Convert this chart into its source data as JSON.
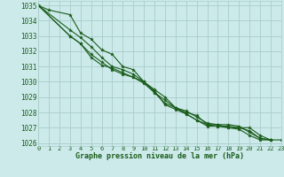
{
  "title": "Graphe pression niveau de la mer (hPa)",
  "background_color": "#cceaea",
  "grid_color": "#aacccc",
  "line_color": "#1a5c1a",
  "x_min": 0,
  "x_max": 23,
  "y_min": 1025.8,
  "y_max": 1035.3,
  "y_ticks": [
    1026,
    1027,
    1028,
    1029,
    1030,
    1031,
    1032,
    1033,
    1034,
    1035
  ],
  "series": [
    [
      1035.0,
      1034.7,
      null,
      1034.4,
      1033.2,
      1032.8,
      1032.1,
      1031.8,
      1031.0,
      1030.8,
      1030.0,
      1029.4,
      1028.5,
      1028.2,
      1027.9,
      1027.5,
      1027.1,
      1027.1,
      1027.1,
      1027.0,
      1027.0,
      1026.5,
      1026.2,
      null
    ],
    [
      1035.0,
      null,
      null,
      1033.4,
      1032.9,
      1032.3,
      1031.6,
      1031.0,
      1030.8,
      1030.5,
      1030.0,
      1029.3,
      1028.8,
      1028.3,
      1028.0,
      1027.8,
      1027.2,
      1027.2,
      1027.2,
      1027.1,
      1026.7,
      1026.3,
      1026.2,
      null
    ],
    [
      1035.0,
      null,
      null,
      1033.0,
      1032.5,
      1031.8,
      1031.3,
      1030.8,
      1030.5,
      1030.3,
      1029.9,
      1029.3,
      1028.6,
      1028.3,
      1027.9,
      1027.5,
      1027.2,
      1027.1,
      1027.0,
      1026.9,
      1026.5,
      1026.2,
      1026.2,
      null
    ],
    [
      1035.0,
      null,
      null,
      1033.0,
      1032.5,
      1031.6,
      1031.1,
      1030.9,
      1030.6,
      1030.3,
      1030.0,
      1029.5,
      1029.0,
      1028.3,
      1028.1,
      1027.7,
      1027.3,
      1027.2,
      1027.0,
      1027.0,
      1026.8,
      1026.3,
      1026.2,
      1026.2
    ]
  ],
  "xlabel_fontsize": 6.0,
  "ytick_fontsize": 5.5,
  "xtick_fontsize": 5.0
}
